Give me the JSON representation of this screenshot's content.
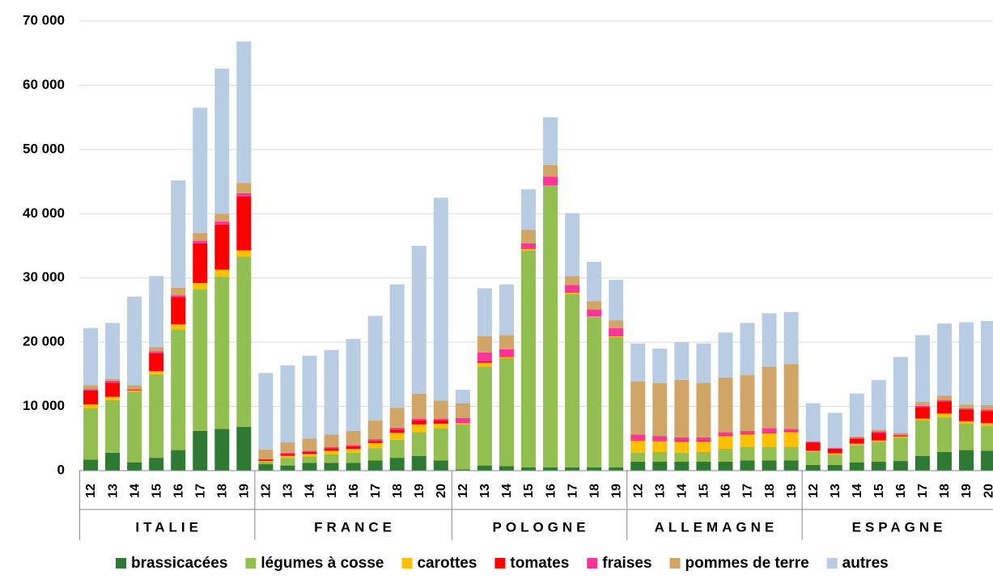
{
  "chart_data": {
    "type": "stacked_bar",
    "groups": [
      {
        "name": "ITALIE",
        "categories": [
          "12",
          "13",
          "14",
          "15",
          "16",
          "17",
          "18",
          "19"
        ]
      },
      {
        "name": "FRANCE",
        "categories": [
          "12",
          "13",
          "14",
          "15",
          "16",
          "17",
          "18",
          "19",
          "20"
        ]
      },
      {
        "name": "POLOGNE",
        "categories": [
          "12",
          "13",
          "14",
          "15",
          "16",
          "17",
          "18",
          "19"
        ]
      },
      {
        "name": "ALLEMAGNE",
        "categories": [
          "12",
          "13",
          "14",
          "15",
          "16",
          "17",
          "18",
          "19"
        ]
      },
      {
        "name": "ESPAGNE",
        "categories": [
          "12",
          "13",
          "14",
          "15",
          "16",
          "17",
          "18",
          "19",
          "20"
        ]
      }
    ],
    "series": [
      {
        "name": "brassicacées",
        "color": "#2e7a33",
        "values": [
          1700,
          2800,
          1300,
          2000,
          3200,
          6200,
          6500,
          6800,
          1000,
          800,
          1200,
          1200,
          1200,
          1600,
          2000,
          2300,
          1600,
          200,
          800,
          700,
          500,
          500,
          500,
          500,
          500,
          1400,
          1400,
          1400,
          1400,
          1400,
          1600,
          1600,
          1600,
          900,
          900,
          1300,
          1400,
          1500,
          2300,
          2900,
          3200,
          3100
        ]
      },
      {
        "name": "légumes à cosse",
        "color": "#92bf50",
        "values": [
          8000,
          8200,
          11000,
          13000,
          18800,
          22000,
          23700,
          26500,
          400,
          1200,
          1000,
          1400,
          1600,
          1900,
          2800,
          3700,
          5000,
          7000,
          15400,
          16800,
          33800,
          43900,
          27000,
          23400,
          20300,
          1400,
          1500,
          1400,
          1500,
          2000,
          2100,
          2100,
          2100,
          2100,
          1600,
          2700,
          3100,
          3600,
          5600,
          5400,
          4100,
          3900
        ]
      },
      {
        "name": "carottes",
        "color": "#ffc000",
        "values": [
          600,
          500,
          200,
          500,
          800,
          1000,
          1100,
          1000,
          100,
          300,
          400,
          500,
          600,
          800,
          1100,
          1200,
          700,
          200,
          600,
          200,
          200,
          0,
          200,
          100,
          100,
          1900,
          1700,
          1700,
          1600,
          2000,
          2000,
          2100,
          2300,
          100,
          200,
          200,
          200,
          200,
          200,
          600,
          400,
          400
        ]
      },
      {
        "name": "tomates",
        "color": "#ff0000",
        "values": [
          2200,
          2200,
          100,
          2800,
          4200,
          6200,
          7000,
          8400,
          200,
          300,
          300,
          400,
          400,
          300,
          500,
          600,
          500,
          0,
          200,
          100,
          0,
          0,
          0,
          0,
          0,
          100,
          100,
          100,
          100,
          100,
          100,
          100,
          100,
          1300,
          700,
          800,
          1200,
          100,
          1800,
          1900,
          1800,
          1900
        ]
      },
      {
        "name": "fraises",
        "color": "#ff3399",
        "values": [
          200,
          300,
          100,
          300,
          300,
          400,
          500,
          500,
          100,
          200,
          200,
          200,
          200,
          300,
          300,
          300,
          300,
          800,
          1400,
          1100,
          900,
          1400,
          1200,
          1100,
          1300,
          800,
          700,
          600,
          600,
          500,
          400,
          700,
          400,
          100,
          100,
          100,
          200,
          200,
          200,
          200,
          200,
          200
        ]
      },
      {
        "name": "pommes de terre",
        "color": "#d1a566",
        "values": [
          600,
          300,
          600,
          600,
          1200,
          1200,
          1200,
          1600,
          1500,
          1600,
          1900,
          1900,
          2200,
          2900,
          3100,
          3900,
          2800,
          2300,
          2500,
          2200,
          2100,
          1800,
          1400,
          1300,
          1200,
          8300,
          8200,
          8900,
          8500,
          8500,
          8700,
          9600,
          10100,
          100,
          100,
          200,
          300,
          300,
          600,
          700,
          600,
          700
        ]
      },
      {
        "name": "autres",
        "color": "#b8cce4",
        "values": [
          8900,
          8700,
          13800,
          11100,
          16700,
          19500,
          22600,
          22000,
          11900,
          12000,
          12900,
          13200,
          14300,
          16300,
          19200,
          23000,
          31600,
          2100,
          7500,
          7900,
          6300,
          7400,
          9800,
          6100,
          6300,
          5900,
          5400,
          5900,
          6100,
          7000,
          8100,
          8300,
          8100,
          5900,
          5400,
          6700,
          7700,
          11800,
          10400,
          11200,
          12800,
          13100
        ]
      }
    ],
    "ylim": [
      0,
      70000
    ],
    "yticks": [
      0,
      {
        "value": 10000,
        "label": "10 000"
      },
      {
        "value": 20000,
        "label": "20 000"
      },
      {
        "value": 30000,
        "label": "30 000"
      },
      {
        "value": 40000,
        "label": "40 000"
      },
      {
        "value": 50000,
        "label": "50 000"
      },
      {
        "value": 60000,
        "label": "60 000"
      },
      {
        "value": 70000,
        "label": "70 000"
      }
    ],
    "grid": true,
    "legend": "bottom"
  }
}
